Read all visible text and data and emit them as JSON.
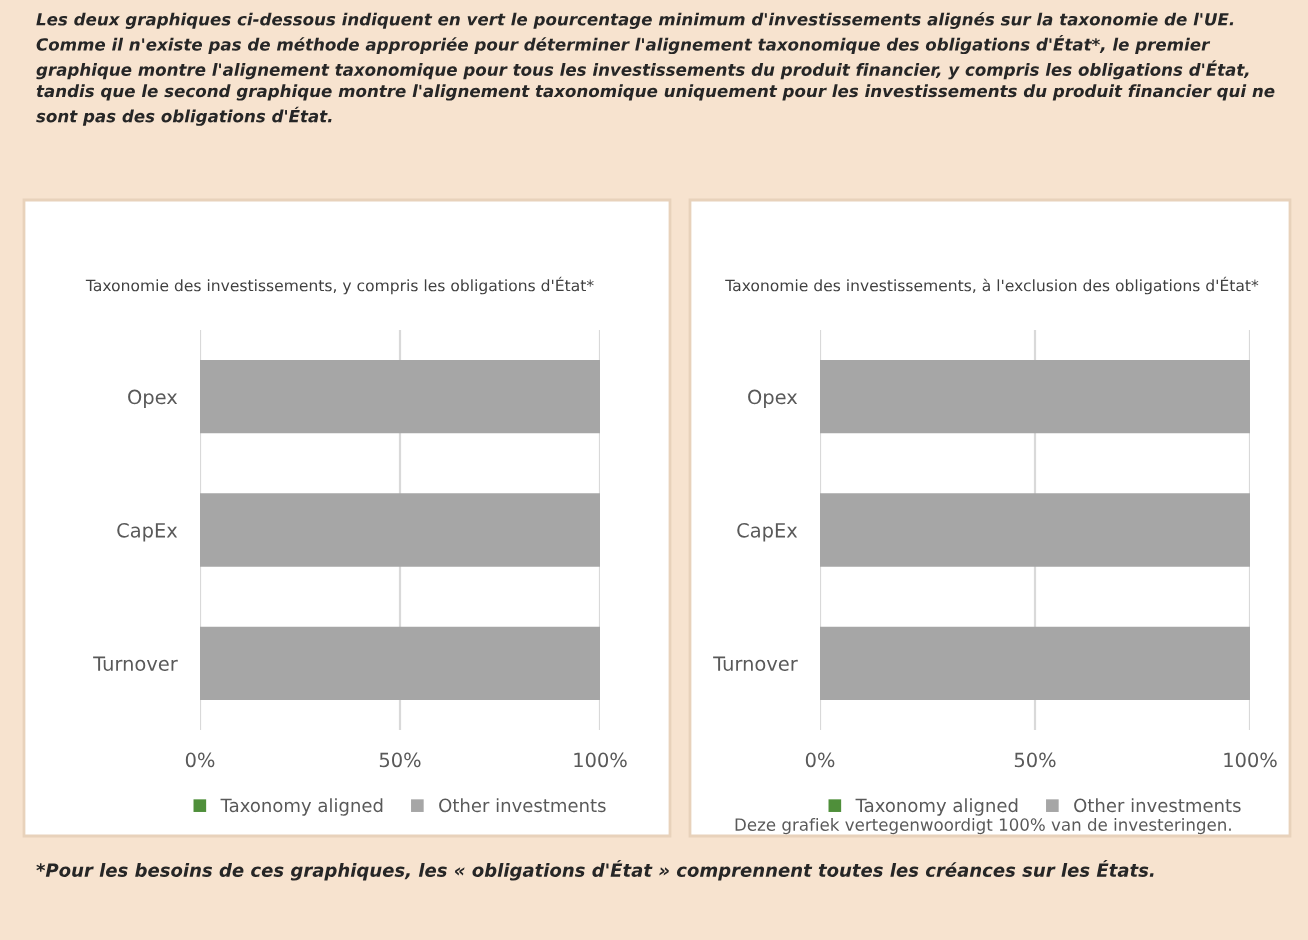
{
  "chart_data": [
    {
      "type": "bar",
      "orientation": "horizontal",
      "stacked": true,
      "title": "Taxonomie des investissements, y compris les obligations d'État*",
      "categories": [
        "Opex",
        "CapEx",
        "Turnover"
      ],
      "series": [
        {
          "name": "Taxonomy aligned",
          "color": "#4f8f3a",
          "values": [
            0,
            0,
            0
          ]
        },
        {
          "name": "Other investments",
          "color": "#a6a6a6",
          "values": [
            100,
            100,
            100
          ]
        }
      ],
      "xlim": [
        0,
        100
      ],
      "xticks": [
        {
          "value": 0,
          "label": "0%"
        },
        {
          "value": 50,
          "label": "50%"
        },
        {
          "value": 100,
          "label": "100%"
        }
      ],
      "grid": "x",
      "legend": "bottom",
      "annotations": [
        "Les deux graphiques ci-dessous indiquent en vert le pourcentage minimum d'investissements alignés sur la taxonomie de l'UE. Comme il n'existe pas de méthode appropriée pour déterminer l'alignement taxonomique des obligations d'État*, le premier graphique montre l'alignement taxonomique pour tous les investissements du produit financier, y compris les obligations d'État, tandis que le second graphique montre l'alignement taxonomique uniquement pour les investissements du produit financier qui ne sont pas des obligations d'État."
      ]
    },
    {
      "type": "bar",
      "orientation": "horizontal",
      "stacked": true,
      "title": "Taxonomie des investissements, à l'exclusion des obligations d'État*",
      "categories": [
        "Opex",
        "CapEx",
        "Turnover"
      ],
      "series": [
        {
          "name": "Taxonomy aligned",
          "color": "#4f8f3a",
          "values": [
            0,
            0,
            0
          ]
        },
        {
          "name": "Other investments",
          "color": "#a6a6a6",
          "values": [
            100,
            100,
            100
          ]
        }
      ],
      "xlim": [
        0,
        100
      ],
      "xticks": [
        {
          "value": 0,
          "label": "0%"
        },
        {
          "value": 50,
          "label": "50%"
        },
        {
          "value": 100,
          "label": "100%"
        }
      ],
      "grid": "x",
      "legend": "bottom",
      "annotations": [
        "Deze grafiek vertegenwoordigt 100% van de investeringen.",
        "*Pour les besoins de ces graphiques, les « obligations d'État » comprennent toutes les créances sur les États."
      ]
    }
  ]
}
